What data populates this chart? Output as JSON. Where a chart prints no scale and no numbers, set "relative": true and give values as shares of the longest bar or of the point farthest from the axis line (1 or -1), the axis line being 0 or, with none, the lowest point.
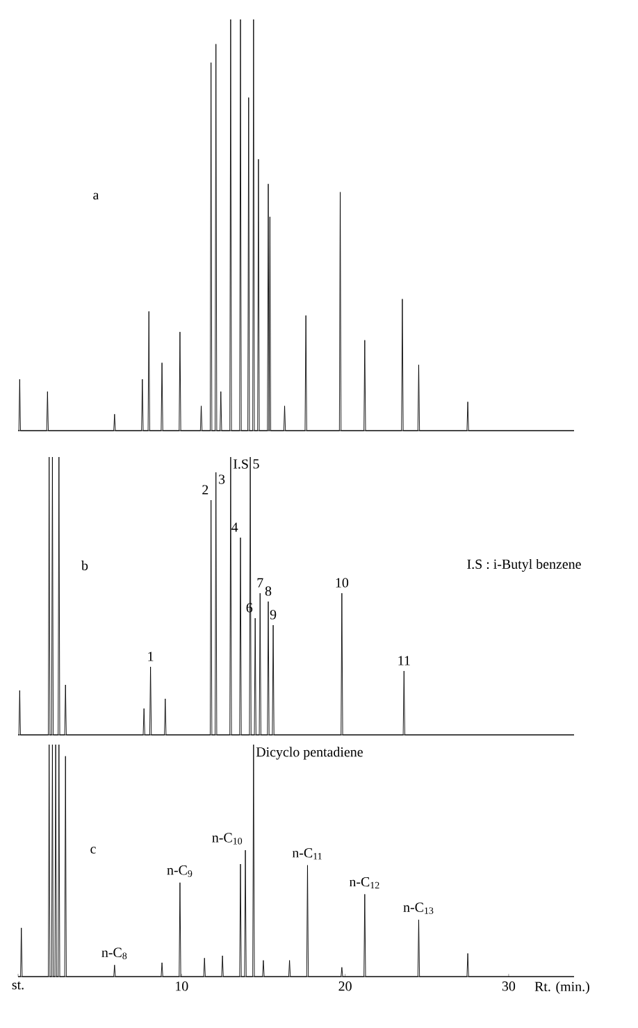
{
  "chart_data": [
    {
      "type": "line",
      "relative": true,
      "xlim": [
        0,
        34
      ],
      "tick_labels": false,
      "series": [
        {
          "color": "#000000",
          "x": [
            0,
            0.05,
            0.1,
            0.15,
            1.75,
            1.8,
            1.85,
            5.85,
            5.9,
            5.95,
            7.55,
            7.6,
            7.65,
            7.95,
            8.0,
            8.05,
            8.75,
            8.8,
            8.85,
            9.85,
            9.9,
            9.95,
            11.15,
            11.2,
            11.25,
            11.75,
            11.8,
            11.85,
            12.05,
            12.1,
            12.15,
            12.35,
            12.4,
            12.45,
            12.95,
            13.0,
            13.05,
            13.55,
            13.6,
            13.65,
            14.05,
            14.1,
            14.15,
            14.35,
            14.4,
            14.45,
            14.65,
            14.7,
            14.75,
            15.25,
            15.3,
            15.35,
            15.35,
            15.4,
            15.45,
            16.25,
            16.3,
            16.35,
            17.55,
            17.6,
            17.65,
            19.65,
            19.7,
            19.75,
            21.15,
            21.2,
            21.25,
            23.45,
            23.5,
            23.55,
            24.45,
            24.5,
            24.55,
            27.45,
            27.5,
            27.55,
            34
          ],
          "values": [
            0,
            0,
            0.125,
            0,
            0,
            0.095,
            0,
            0,
            0.04,
            0,
            0,
            0.125,
            0,
            0,
            0.29,
            0,
            0,
            0.165,
            0,
            0,
            0.24,
            0,
            0,
            0.06,
            0,
            0,
            0.895,
            0,
            0,
            0.94,
            0,
            0,
            0.095,
            0,
            0,
            1,
            0,
            0,
            1,
            0,
            0,
            0.81,
            0,
            0,
            1,
            0,
            0,
            0.66,
            0,
            0,
            0.6,
            0,
            0,
            0.52,
            0,
            0,
            0.06,
            0,
            0,
            0.28,
            0,
            0,
            0.58,
            0,
            0,
            0.22,
            0,
            0,
            0.32,
            0,
            0,
            0.16,
            0,
            0,
            0.07,
            0,
            0
          ]
        }
      ],
      "annotations": [
        "a"
      ]
    },
    {
      "type": "line",
      "relative": true,
      "xlim": [
        0,
        34
      ],
      "tick_labels": false,
      "series": [
        {
          "color": "#000000",
          "x": [
            0,
            0.05,
            0.1,
            0.15,
            1.85,
            1.9,
            1.95,
            2.05,
            2.1,
            2.15,
            2.45,
            2.5,
            2.55,
            2.85,
            2.9,
            2.95,
            7.65,
            7.7,
            7.75,
            8.05,
            8.1,
            8.15,
            8.95,
            9.0,
            9.05,
            11.75,
            11.8,
            11.85,
            12.05,
            12.1,
            12.15,
            12.95,
            13.0,
            13.05,
            13.55,
            13.6,
            13.65,
            14.15,
            14.2,
            14.25,
            14.45,
            14.5,
            14.55,
            14.75,
            14.8,
            14.85,
            15.25,
            15.3,
            15.35,
            15.55,
            15.6,
            15.65,
            19.75,
            19.8,
            19.85,
            23.55,
            23.6,
            23.65,
            34
          ],
          "values": [
            0,
            0,
            0.16,
            0,
            0,
            1,
            0,
            0,
            1,
            0,
            0,
            1,
            0,
            0,
            0.18,
            0,
            0,
            0.095,
            0,
            0,
            0.245,
            0,
            0,
            0.13,
            0,
            0,
            0.845,
            0,
            0,
            0.945,
            0,
            0,
            1,
            0,
            0,
            0.71,
            0,
            0,
            1,
            0,
            0,
            0.42,
            0,
            0,
            0.51,
            0,
            0,
            0.48,
            0,
            0,
            0.395,
            0,
            0,
            0.51,
            0,
            0,
            0.23,
            0,
            0
          ]
        }
      ],
      "annotations": [
        "b",
        "I.S : i-Butyl benzene",
        {
          "text": "1",
          "x": 8.1,
          "y": 0.245
        },
        {
          "text": "2",
          "x": 11.8,
          "y": 0.845
        },
        {
          "text": "3",
          "x": 12.1,
          "y": 0.945
        },
        {
          "text": "I.S",
          "x": 13.0,
          "y": 1
        },
        {
          "text": "4",
          "x": 13.6,
          "y": 0.71
        },
        {
          "text": "5",
          "x": 14.2,
          "y": 1
        },
        {
          "text": "6",
          "x": 14.5,
          "y": 0.42
        },
        {
          "text": "7",
          "x": 14.8,
          "y": 0.51
        },
        {
          "text": "8",
          "x": 15.3,
          "y": 0.48
        },
        {
          "text": "9",
          "x": 15.6,
          "y": 0.395
        },
        {
          "text": "10",
          "x": 19.8,
          "y": 0.51
        },
        {
          "text": "11",
          "x": 23.6,
          "y": 0.23
        }
      ]
    },
    {
      "type": "line",
      "relative": true,
      "xlim": [
        0,
        34
      ],
      "xlabel": "Rt. (min.)",
      "xticks": [
        {
          "value": 0,
          "label": "st."
        },
        10,
        20,
        30
      ],
      "series": [
        {
          "color": "#000000",
          "x": [
            0,
            0.15,
            0.2,
            0.25,
            1.85,
            1.9,
            1.95,
            2.05,
            2.1,
            2.15,
            2.25,
            2.3,
            2.35,
            2.45,
            2.5,
            2.55,
            2.85,
            2.9,
            2.95,
            5.85,
            5.9,
            5.95,
            8.75,
            8.8,
            8.85,
            9.85,
            9.9,
            9.95,
            11.35,
            11.4,
            11.45,
            12.45,
            12.5,
            12.55,
            13.55,
            13.6,
            13.65,
            13.85,
            13.9,
            13.95,
            14.35,
            14.4,
            14.45,
            14.95,
            15.0,
            15.05,
            16.55,
            16.6,
            16.65,
            17.65,
            17.7,
            17.75,
            19.75,
            19.8,
            19.85,
            21.15,
            21.2,
            21.25,
            24.45,
            24.5,
            24.55,
            27.45,
            27.5,
            27.55,
            34
          ],
          "values": [
            0,
            0,
            0.21,
            0,
            0,
            1,
            0,
            0,
            1,
            0,
            0,
            1,
            0,
            0,
            1,
            0,
            0,
            0.95,
            0,
            0,
            0.05,
            0,
            0,
            0.06,
            0,
            0,
            0.405,
            0,
            0,
            0.08,
            0,
            0,
            0.09,
            0,
            0,
            0.485,
            0,
            0,
            0.545,
            0,
            0,
            1,
            0,
            0,
            0.07,
            0,
            0,
            0.07,
            0,
            0,
            0.48,
            0,
            0,
            0.04,
            0,
            0,
            0.355,
            0,
            0,
            0.245,
            0,
            0,
            0.1,
            0,
            0
          ]
        }
      ],
      "annotations": [
        "c",
        {
          "text": "n-C$_{8}$",
          "x": 5.9,
          "y": 0.05
        },
        {
          "text": "n-C$_{9}$",
          "x": 9.9,
          "y": 0.405
        },
        {
          "text": "n-C$_{10}$",
          "x": 13.9,
          "y": 0.545
        },
        {
          "text": "Dicyclo pentadiene",
          "x": 14.4,
          "y": 1
        },
        {
          "text": "n-C$_{11}$",
          "x": 17.7,
          "y": 0.48
        },
        {
          "text": "n-C$_{12}$",
          "x": 21.2,
          "y": 0.355
        },
        {
          "text": "n-C$_{13}$",
          "x": 24.5,
          "y": 0.245
        }
      ]
    }
  ]
}
